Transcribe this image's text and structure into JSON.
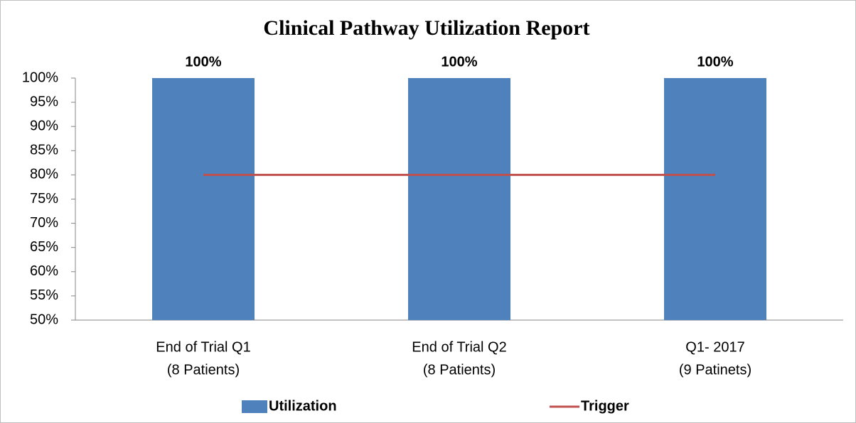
{
  "chart_data": {
    "type": "bar",
    "title": "Clinical Pathway Utilization Report",
    "categories": [
      [
        "End of Trial Q1",
        "(8 Patients)"
      ],
      [
        "End of Trial Q2",
        "(8 Patients)"
      ],
      [
        "Q1- 2017",
        "(9 Patinets)"
      ]
    ],
    "series": [
      {
        "name": "Utilization",
        "type": "bar",
        "color": "#4f81bd",
        "values": [
          100,
          100,
          100
        ],
        "value_labels": [
          "100%",
          "100%",
          "100%"
        ]
      },
      {
        "name": "Trigger",
        "type": "line",
        "color": "#c0504d",
        "values": [
          80,
          80,
          80
        ]
      }
    ],
    "ylim": [
      50,
      100
    ],
    "yticks": [
      {
        "value": 50,
        "label": "50%"
      },
      {
        "value": 55,
        "label": "55%"
      },
      {
        "value": 60,
        "label": "60%"
      },
      {
        "value": 65,
        "label": "65%"
      },
      {
        "value": 70,
        "label": "70%"
      },
      {
        "value": 75,
        "label": "75%"
      },
      {
        "value": 80,
        "label": "80%"
      },
      {
        "value": 85,
        "label": "85%"
      },
      {
        "value": 90,
        "label": "90%"
      },
      {
        "value": 95,
        "label": "95%"
      },
      {
        "value": 100,
        "label": "100%"
      }
    ],
    "grid": false,
    "legend": "bottom"
  }
}
